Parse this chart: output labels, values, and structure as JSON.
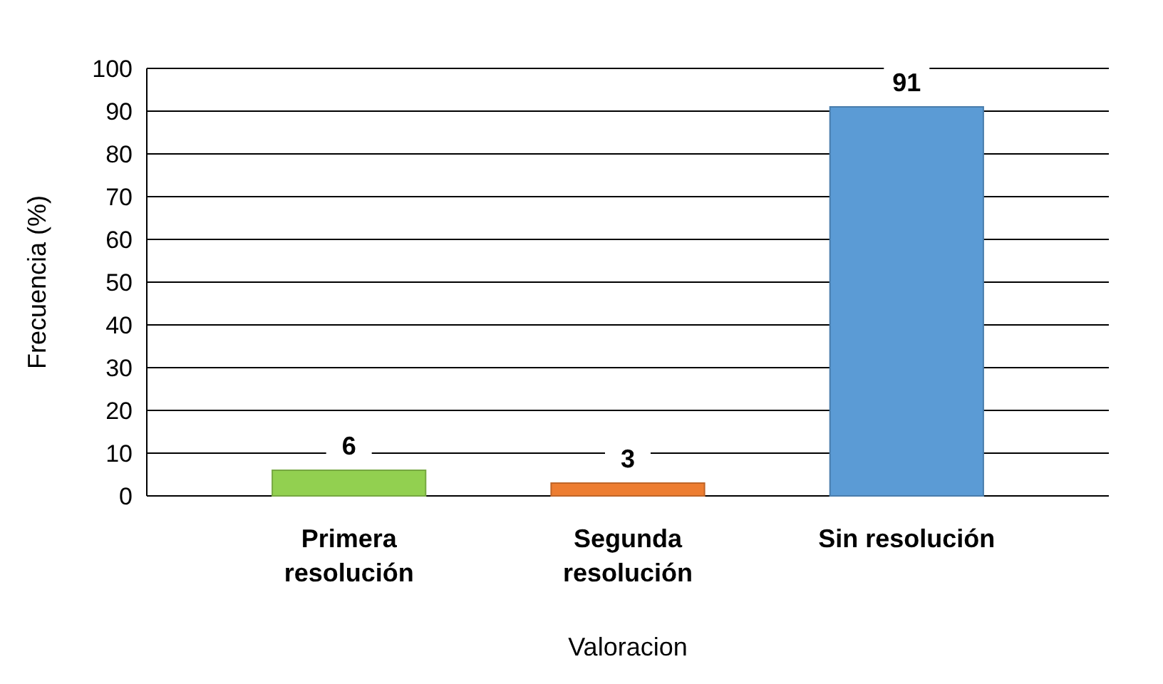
{
  "chart_data": {
    "type": "bar",
    "xlabel": "Valoracion",
    "ylabel": "Frecuencia (%)",
    "categories": [
      "Primera resolución",
      "Segunda resolución",
      "Sin resolución"
    ],
    "values": [
      6,
      3,
      91
    ],
    "colors": [
      "#92d050",
      "#ed7d31",
      "#5b9bd5"
    ],
    "ylim": [
      0,
      100
    ],
    "yticks": [
      0,
      10,
      20,
      30,
      40,
      50,
      60,
      70,
      80,
      90,
      100
    ],
    "grid": "y",
    "data_labels": true
  }
}
